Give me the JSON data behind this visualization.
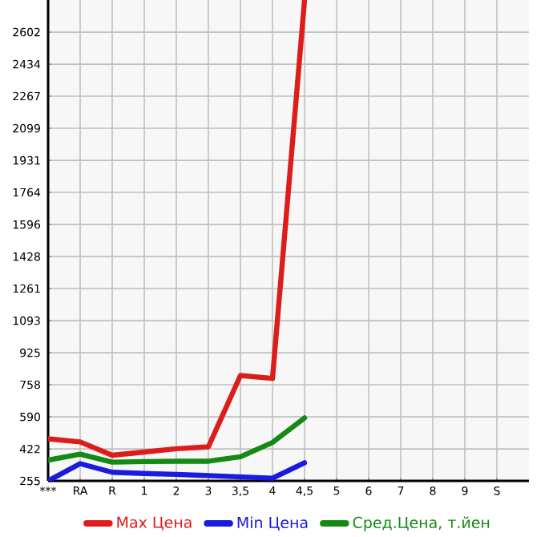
{
  "chart_data": {
    "type": "line",
    "categories": [
      "***",
      "RA",
      "R",
      "1",
      "2",
      "3",
      "3,5",
      "4",
      "4,5",
      "5",
      "6",
      "7",
      "8",
      "9",
      "S"
    ],
    "series": [
      {
        "name": "Max Цена",
        "color": "#dd1c1c",
        "values": [
          475,
          459,
          389,
          406,
          423,
          433,
          806,
          791,
          2770,
          null,
          null,
          null,
          null,
          null,
          null
        ]
      },
      {
        "name": "Min Цена",
        "color": "#1a1ae0",
        "values": [
          255,
          345,
          300,
          294,
          289,
          283,
          276,
          269,
          350,
          null,
          null,
          null,
          null,
          null,
          null
        ]
      },
      {
        "name": "Сред.Цена, т.йен",
        "color": "#138a13",
        "values": [
          364,
          395,
          353,
          356,
          358,
          358,
          381,
          456,
          584,
          null,
          null,
          null,
          null,
          null,
          null
        ]
      }
    ],
    "ylim": [
      255,
      2770
    ],
    "yticks": [
      255,
      422,
      590,
      758,
      925,
      1093,
      1261,
      1428,
      1596,
      1764,
      1931,
      2099,
      2267,
      2434,
      2602
    ],
    "grid": true,
    "legend": "bottom",
    "marker": "none",
    "line_style": "solid"
  }
}
